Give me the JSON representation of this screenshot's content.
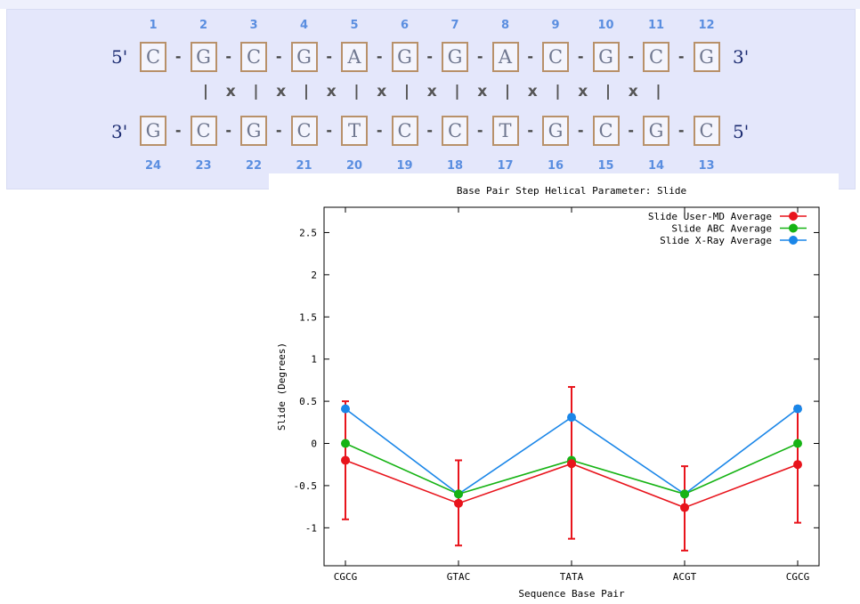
{
  "sequence": {
    "top_label_5": "5'",
    "top_label_3": "3'",
    "bottom_label_3": "3'",
    "bottom_label_5": "5'",
    "top_numbers": [
      "1",
      "2",
      "3",
      "4",
      "5",
      "6",
      "7",
      "8",
      "9",
      "10",
      "11",
      "12"
    ],
    "top_bases": [
      "C",
      "G",
      "C",
      "G",
      "A",
      "G",
      "G",
      "A",
      "C",
      "G",
      "C",
      "G"
    ],
    "bonds": [
      "|",
      "x",
      "|",
      "x",
      "|",
      "x",
      "|",
      "x",
      "|",
      "x",
      "|",
      "x",
      "|",
      "x",
      "|",
      "x",
      "|",
      "x",
      "|"
    ],
    "bottom_bases": [
      "G",
      "C",
      "G",
      "C",
      "T",
      "C",
      "C",
      "T",
      "G",
      "C",
      "G",
      "C"
    ],
    "bottom_numbers": [
      "24",
      "23",
      "22",
      "21",
      "20",
      "19",
      "18",
      "17",
      "16",
      "15",
      "14",
      "13"
    ],
    "dash": "-"
  },
  "chart_data": {
    "type": "line",
    "title": "Base Pair Step Helical Parameter: Slide",
    "xlabel": "Sequence Base Pair",
    "ylabel": "Slide (Degrees)",
    "categories": [
      "CGCG",
      "GTAC",
      "TATA",
      "ACGT",
      "CGCG"
    ],
    "ylim": [
      -1.45,
      2.8
    ],
    "yticks": [
      "-1",
      "-0.5",
      "0",
      "0.5",
      "1",
      "1.5",
      "2",
      "2.5"
    ],
    "legend_position": "top-right",
    "series": [
      {
        "name": "Slide User-MD Average",
        "color": "#e8141c",
        "values": [
          -0.2,
          -0.71,
          -0.24,
          -0.76,
          -0.25
        ],
        "error_low": [
          -0.9,
          -1.21,
          -1.13,
          -1.27,
          -0.94
        ],
        "error_high": [
          0.5,
          -0.2,
          0.67,
          -0.27,
          0.44
        ]
      },
      {
        "name": "Slide ABC Average",
        "color": "#16b314",
        "values": [
          0.0,
          -0.6,
          -0.2,
          -0.6,
          0.0
        ]
      },
      {
        "name": "Slide X-Ray Average",
        "color": "#1a86e8",
        "values": [
          0.41,
          -0.6,
          0.31,
          -0.6,
          0.41
        ]
      }
    ]
  }
}
